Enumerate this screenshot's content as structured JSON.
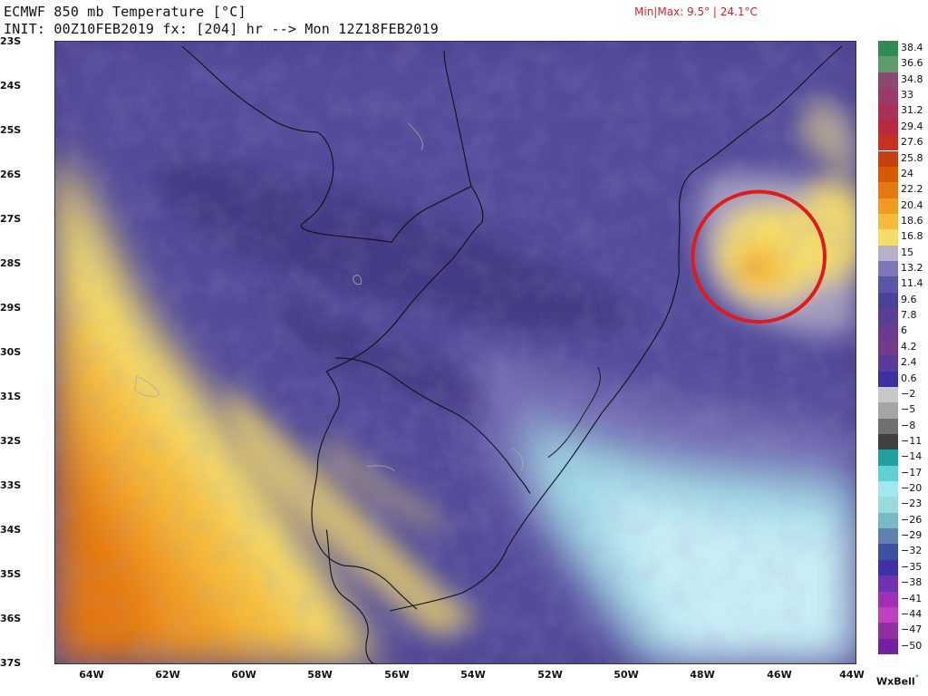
{
  "header": {
    "title": "ECMWF 850 mb Temperature [°C]",
    "init_line": "INIT: 00Z10FEB2019 fx: [204] hr --> Mon 12Z18FEB2019",
    "minmax": "Min|Max: 9.5° | 24.1°C"
  },
  "axes": {
    "latitude_labels": [
      "23S",
      "24S",
      "25S",
      "26S",
      "27S",
      "28S",
      "29S",
      "30S",
      "31S",
      "32S",
      "33S",
      "34S",
      "35S",
      "36S",
      "37S"
    ],
    "longitude_labels": [
      "64W",
      "62W",
      "60W",
      "58W",
      "56W",
      "54W",
      "52W",
      "50W",
      "48W",
      "46W",
      "44W"
    ]
  },
  "colorbar": {
    "labels": [
      "38.4",
      "36.6",
      "34.8",
      "33",
      "31.2",
      "29.4",
      "27.6",
      "25.8",
      "24",
      "22.2",
      "20.4",
      "18.6",
      "16.8",
      "15",
      "13.2",
      "11.4",
      "9.6",
      "7.8",
      "6",
      "4.2",
      "2.4",
      "0.6",
      "−2",
      "−5",
      "−8",
      "−11",
      "−14",
      "−17",
      "−20",
      "−23",
      "−26",
      "−29",
      "−32",
      "−35",
      "−38",
      "−41",
      "−44",
      "−47",
      "−50"
    ],
    "colors": [
      "#2e8b57",
      "#5c9c6a",
      "#8a4a70",
      "#9a3a6a",
      "#a8305a",
      "#b82a40",
      "#c83020",
      "#c84010",
      "#d85a00",
      "#e57810",
      "#f09a20",
      "#f5bb3a",
      "#f5dc6a",
      "#b6b0c8",
      "#7d76b8",
      "#5a55a8",
      "#4a4298",
      "#5a3e95",
      "#6a3a8e",
      "#743a8a",
      "#5a3a9a",
      "#3e2fa0",
      "#c8c8c8",
      "#a5a5a5",
      "#707070",
      "#404040",
      "#20a0a0",
      "#60d0d8",
      "#a0e8f0",
      "#9adada",
      "#7ab8c8",
      "#6080b0",
      "#3e50a0",
      "#4030a8",
      "#7030b0",
      "#a030b8",
      "#c040c0",
      "#9030a0",
      "#7020a0"
    ]
  },
  "logo": {
    "text": "WxBell"
  },
  "colors": {
    "accent_marker": "#e01b1b",
    "coastline": "#111111",
    "warm": "#f08a10",
    "cool": "#bde9f2"
  }
}
